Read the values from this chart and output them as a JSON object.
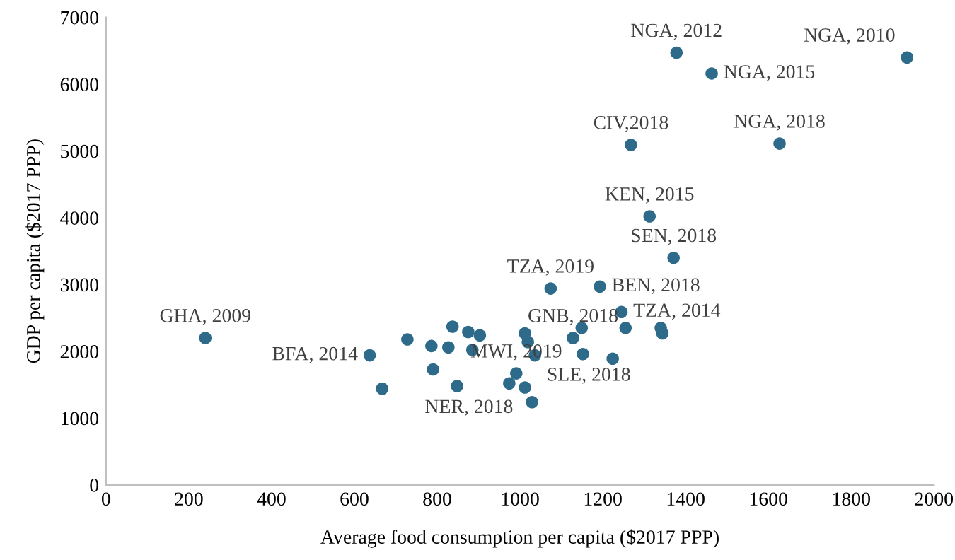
{
  "chart_data": {
    "type": "scatter",
    "xlabel": "Average food consumption per capita ($2017 PPP)",
    "ylabel": "GDP per capita ($2017 PPP)",
    "xlim": [
      0,
      2000
    ],
    "xticks": [
      0,
      200,
      400,
      600,
      800,
      1000,
      1200,
      1400,
      1600,
      1800,
      2000
    ],
    "ylim": [
      0,
      7000
    ],
    "yticks": [
      0,
      1000,
      2000,
      3000,
      4000,
      5000,
      6000,
      7000
    ],
    "grid": false,
    "marker": "circle",
    "series": [
      {
        "color": "#2e6b8a",
        "x": [
          240,
          637,
          667,
          728,
          786,
          790,
          837,
          827,
          848,
          875,
          903,
          885,
          991,
          974,
          1012,
          1029,
          1012,
          1019,
          1036,
          1128,
          1149,
          1152,
          1224,
          1255,
          1340,
          1344,
          1378,
          1463,
          1935,
          1268,
          1627,
          1313,
          1371,
          1074,
          1193,
          1245
        ],
        "values": [
          2200,
          1940,
          1440,
          2180,
          2080,
          1730,
          2370,
          2060,
          1480,
          2290,
          2240,
          2020,
          1670,
          1520,
          1460,
          1240,
          2270,
          2140,
          1940,
          2200,
          2350,
          1960,
          1890,
          2350,
          2350,
          2270,
          6470,
          6160,
          6400,
          5090,
          5110,
          4020,
          3400,
          2940,
          2970,
          2590
        ]
      }
    ],
    "annotations": [
      {
        "text": "GHA, 2009",
        "x": 240,
        "y": 2200
      },
      {
        "text": "BFA, 2014",
        "x": 637,
        "y": 1940
      },
      {
        "text": "MWI, 2019",
        "x": 991,
        "y": 1670
      },
      {
        "text": "NER, 2018",
        "x": 1012,
        "y": 1460
      },
      {
        "text": "SLE, 2018",
        "x": 1036,
        "y": 1940
      },
      {
        "text": "GNB, 2018",
        "x": 1128,
        "y": 2200
      },
      {
        "text": "TZA, 2019",
        "x": 1074,
        "y": 2940
      },
      {
        "text": "BEN, 2018",
        "x": 1193,
        "y": 2970
      },
      {
        "text": "TZA, 2014",
        "x": 1245,
        "y": 2590
      },
      {
        "text": "SEN, 2018",
        "x": 1371,
        "y": 3400
      },
      {
        "text": "KEN, 2015",
        "x": 1313,
        "y": 4020
      },
      {
        "text": "CIV,2018",
        "x": 1268,
        "y": 5090
      },
      {
        "text": "NGA, 2018",
        "x": 1627,
        "y": 5110
      },
      {
        "text": "NGA, 2012",
        "x": 1378,
        "y": 6470
      },
      {
        "text": "NGA, 2015",
        "x": 1463,
        "y": 6160
      },
      {
        "text": "NGA, 2010",
        "x": 1935,
        "y": 6400
      }
    ]
  }
}
